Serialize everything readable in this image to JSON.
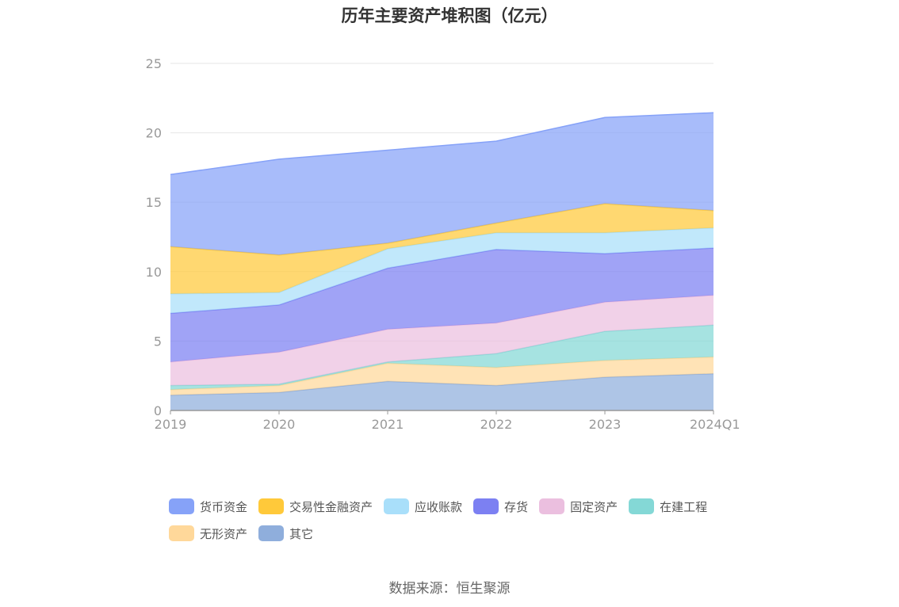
{
  "title": "历年主要资产堆积图（亿元）",
  "source": "数据来源：恒生聚源",
  "chart_data": {
    "type": "area",
    "stacked": true,
    "categories": [
      "2019",
      "2020",
      "2021",
      "2022",
      "2023",
      "2024Q1"
    ],
    "ylim": [
      0,
      25
    ],
    "yticks": [
      0,
      5,
      10,
      15,
      20,
      25
    ],
    "grid": true,
    "legend_position": "bottom",
    "series": [
      {
        "name": "其它",
        "color": "#8FAEDC",
        "values": [
          1.1,
          1.3,
          2.1,
          1.8,
          2.4,
          2.65
        ]
      },
      {
        "name": "无形资产",
        "color": "#FFD89A",
        "values": [
          0.4,
          0.5,
          1.3,
          1.3,
          1.2,
          1.2
        ]
      },
      {
        "name": "在建工程",
        "color": "#84D8D6",
        "values": [
          0.3,
          0.1,
          0.1,
          1.0,
          2.1,
          2.3
        ]
      },
      {
        "name": "固定资产",
        "color": "#EBBFDF",
        "values": [
          1.7,
          2.3,
          2.35,
          2.2,
          2.1,
          2.15
        ]
      },
      {
        "name": "存货",
        "color": "#7C80F2",
        "values": [
          3.5,
          3.4,
          4.4,
          5.3,
          3.5,
          3.4
        ]
      },
      {
        "name": "应收账款",
        "color": "#A9DFFA",
        "values": [
          1.4,
          0.9,
          1.4,
          1.2,
          1.5,
          1.45
        ]
      },
      {
        "name": "交易性金融资产",
        "color": "#FFC93A",
        "values": [
          3.4,
          2.7,
          0.4,
          0.7,
          2.1,
          1.25
        ]
      },
      {
        "name": "货币资金",
        "color": "#86A2F8",
        "values": [
          5.2,
          6.9,
          6.7,
          5.9,
          6.2,
          7.05
        ]
      }
    ],
    "legend_order": [
      "货币资金",
      "交易性金融资产",
      "应收账款",
      "存货",
      "固定资产",
      "在建工程",
      "无形资产",
      "其它"
    ]
  }
}
